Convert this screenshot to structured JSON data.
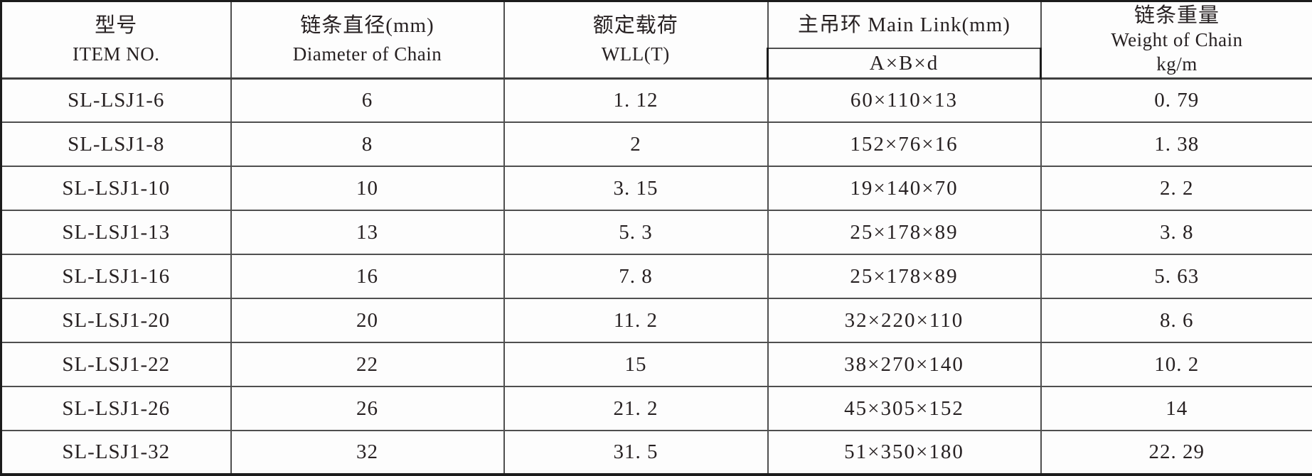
{
  "table": {
    "title": "chain-sling-specification-table",
    "columns": {
      "item_no": {
        "zh": "型号",
        "en": "ITEM NO."
      },
      "diameter": {
        "zh": "链条直径(mm)",
        "en": "Diameter of Chain"
      },
      "wll": {
        "zh": "额定载荷",
        "en": "WLL(T)"
      },
      "main_link": {
        "label": "主吊环 Main Link(mm)",
        "sub_label": "A×B×d"
      },
      "weight": {
        "zh": "链条重量",
        "en": "Weight of Chain",
        "unit": "kg/m"
      }
    },
    "rows": [
      {
        "item_no": "SL-LSJ1-6",
        "diameter": "6",
        "wll": "1. 12",
        "main_link": "60×110×13",
        "weight": "0. 79"
      },
      {
        "item_no": "SL-LSJ1-8",
        "diameter": "8",
        "wll": "2",
        "main_link": "152×76×16",
        "weight": "1. 38"
      },
      {
        "item_no": "SL-LSJ1-10",
        "diameter": "10",
        "wll": "3. 15",
        "main_link": "19×140×70",
        "weight": "2. 2"
      },
      {
        "item_no": "SL-LSJ1-13",
        "diameter": "13",
        "wll": "5. 3",
        "main_link": "25×178×89",
        "weight": "3. 8"
      },
      {
        "item_no": "SL-LSJ1-16",
        "diameter": "16",
        "wll": "7. 8",
        "main_link": "25×178×89",
        "weight": "5. 63"
      },
      {
        "item_no": "SL-LSJ1-20",
        "diameter": "20",
        "wll": "11. 2",
        "main_link": "32×220×110",
        "weight": "8. 6"
      },
      {
        "item_no": "SL-LSJ1-22",
        "diameter": "22",
        "wll": "15",
        "main_link": "38×270×140",
        "weight": "10. 2"
      },
      {
        "item_no": "SL-LSJ1-26",
        "diameter": "26",
        "wll": "21. 2",
        "main_link": "45×305×152",
        "weight": "14"
      },
      {
        "item_no": "SL-LSJ1-32",
        "diameter": "32",
        "wll": "31. 5",
        "main_link": "51×350×180",
        "weight": "22. 29"
      }
    ],
    "colors": {
      "grid_line": "#4f4f4f",
      "outer_border": "#1c1c1c",
      "text": "#272122",
      "background": "#fdfdfd"
    }
  }
}
